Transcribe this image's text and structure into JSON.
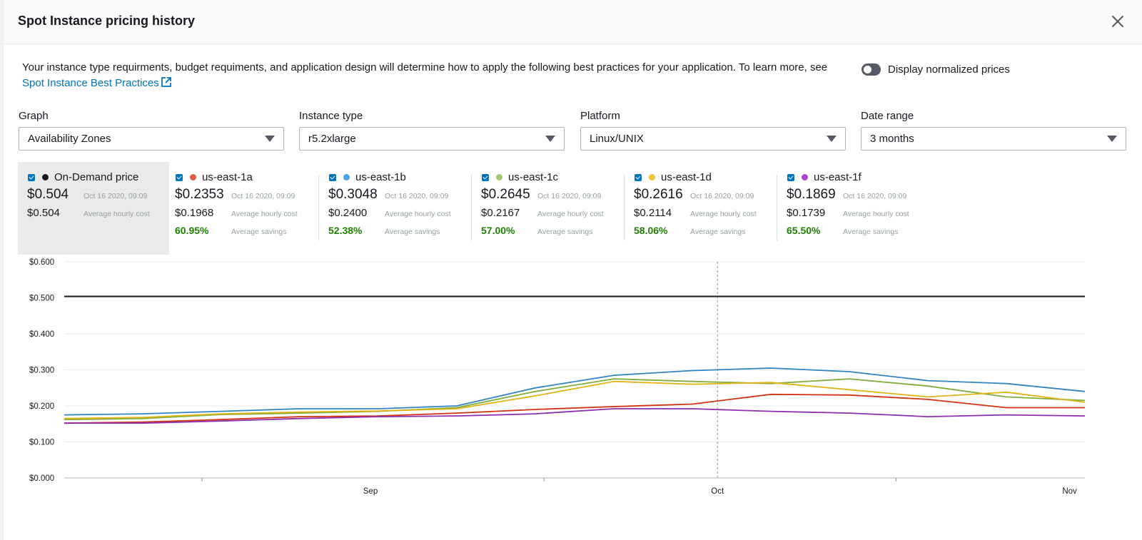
{
  "modal": {
    "title": "Spot Instance pricing history"
  },
  "intro": {
    "text": "Your instance type requirments, budget requiments, and application design will determine how to apply the following best practices for your application. To learn more, see ",
    "link_label": "Spot Instance Best Practices"
  },
  "toggle": {
    "label": "Display normalized prices",
    "on": false
  },
  "filters": [
    {
      "label": "Graph",
      "value": "Availability Zones"
    },
    {
      "label": "Instance type",
      "value": "r5.2xlarge"
    },
    {
      "label": "Platform",
      "value": "Linux/UNIX"
    },
    {
      "label": "Date range",
      "value": "3 months"
    }
  ],
  "legend": [
    {
      "name": "On-Demand price",
      "color": "#16191f",
      "price": "$0.504",
      "timestamp": "Oct 16 2020, 09:09",
      "avg": "$0.504",
      "avg_label": "Average hourly cost"
    },
    {
      "name": "us-east-1a",
      "color": "#d13212",
      "price": "$0.2353",
      "timestamp": "Oct 16 2020, 09:09",
      "avg": "$0.1968",
      "avg_label": "Average hourly cost",
      "savings": "60.95%",
      "savings_label": "Average savings"
    },
    {
      "name": "us-east-1b",
      "color": "#3184c2",
      "price": "$0.3048",
      "timestamp": "Oct 16 2020, 09:09",
      "avg": "$0.2400",
      "avg_label": "Average hourly cost",
      "savings": "52.38%",
      "savings_label": "Average savings"
    },
    {
      "name": "us-east-1c",
      "color": "#7ead3b",
      "price": "$0.2645",
      "timestamp": "Oct 16 2020, 09:09",
      "avg": "$0.2167",
      "avg_label": "Average hourly cost",
      "savings": "57.00%",
      "savings_label": "Average savings"
    },
    {
      "name": "us-east-1d",
      "color": "#e0b416",
      "price": "$0.2616",
      "timestamp": "Oct 16 2020, 09:09",
      "avg": "$0.2114",
      "avg_label": "Average hourly cost",
      "savings": "58.06%",
      "savings_label": "Average savings"
    },
    {
      "name": "us-east-1f",
      "color": "#8b2fae",
      "price": "$0.1869",
      "timestamp": "Oct 16 2020, 09:09",
      "avg": "$0.1739",
      "avg_label": "Average hourly cost",
      "savings": "65.50%",
      "savings_label": "Average savings"
    }
  ],
  "chart_data": {
    "type": "line",
    "y_tick_labels": [
      "$0.000",
      "$0.100",
      "$0.200",
      "$0.300",
      "$0.400",
      "$0.500",
      "$0.600"
    ],
    "ylim": [
      0,
      0.6
    ],
    "x_tick_labels": [
      "Sep",
      "Oct",
      "Nov"
    ],
    "grid": true,
    "vertical_marker_at": "Oct",
    "x": [
      "Aug 3",
      "Aug 10",
      "Aug 17",
      "Aug 24",
      "Aug 31",
      "Sep 7",
      "Sep 14",
      "Sep 21",
      "Sep 28",
      "Oct 5",
      "Oct 12",
      "Oct 19",
      "Oct 26",
      "Nov 2"
    ],
    "series": [
      {
        "name": "On-Demand price",
        "color": "#16191f",
        "values": [
          0.504,
          0.504,
          0.504,
          0.504,
          0.504,
          0.504,
          0.504,
          0.504,
          0.504,
          0.504,
          0.504,
          0.504,
          0.504,
          0.504
        ]
      },
      {
        "name": "us-east-1a",
        "color": "#d13212",
        "values": [
          0.152,
          0.155,
          0.162,
          0.17,
          0.172,
          0.18,
          0.19,
          0.198,
          0.205,
          0.232,
          0.23,
          0.218,
          0.195,
          0.195
        ]
      },
      {
        "name": "us-east-1b",
        "color": "#3184c2",
        "values": [
          0.175,
          0.178,
          0.185,
          0.192,
          0.192,
          0.2,
          0.25,
          0.285,
          0.298,
          0.305,
          0.295,
          0.27,
          0.262,
          0.24
        ]
      },
      {
        "name": "us-east-1c",
        "color": "#7ead3b",
        "values": [
          0.162,
          0.165,
          0.176,
          0.18,
          0.185,
          0.195,
          0.24,
          0.275,
          0.268,
          0.262,
          0.275,
          0.255,
          0.225,
          0.215
        ]
      },
      {
        "name": "us-east-1d",
        "color": "#e0b416",
        "values": [
          0.165,
          0.168,
          0.178,
          0.183,
          0.186,
          0.192,
          0.228,
          0.268,
          0.26,
          0.265,
          0.245,
          0.225,
          0.238,
          0.21
        ]
      },
      {
        "name": "us-east-1f",
        "color": "#8b2fae",
        "values": [
          0.152,
          0.152,
          0.158,
          0.165,
          0.17,
          0.172,
          0.178,
          0.192,
          0.192,
          0.185,
          0.18,
          0.17,
          0.175,
          0.172
        ]
      }
    ]
  }
}
